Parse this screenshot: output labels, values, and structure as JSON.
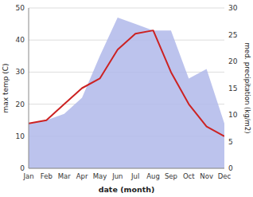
{
  "chart_data": {
    "type": "line",
    "categories": [
      "Jan",
      "Feb",
      "Mar",
      "Apr",
      "May",
      "Jun",
      "Jul",
      "Aug",
      "Sep",
      "Oct",
      "Nov",
      "Dec"
    ],
    "series": [
      {
        "type": "area",
        "color": "#b0b8ea",
        "values": [
          14,
          15,
          17,
          22,
          35,
          47,
          45,
          43,
          43,
          28,
          31,
          14
        ]
      },
      {
        "type": "line",
        "color": "#cc2222",
        "values": [
          14,
          15,
          20,
          25,
          28,
          37,
          42,
          43,
          30,
          20,
          13,
          10
        ]
      }
    ],
    "xlabel": "date (month)",
    "ylabel": "max temp (C)",
    "y2label": "med. precipitation (kg/m2)",
    "ylim": [
      0,
      50
    ],
    "yticks": [
      0,
      10,
      20,
      30,
      40,
      50
    ],
    "y2lim": [
      0,
      30
    ],
    "y2ticks": [
      0,
      5,
      10,
      15,
      20,
      25,
      30
    ],
    "grid": true
  }
}
